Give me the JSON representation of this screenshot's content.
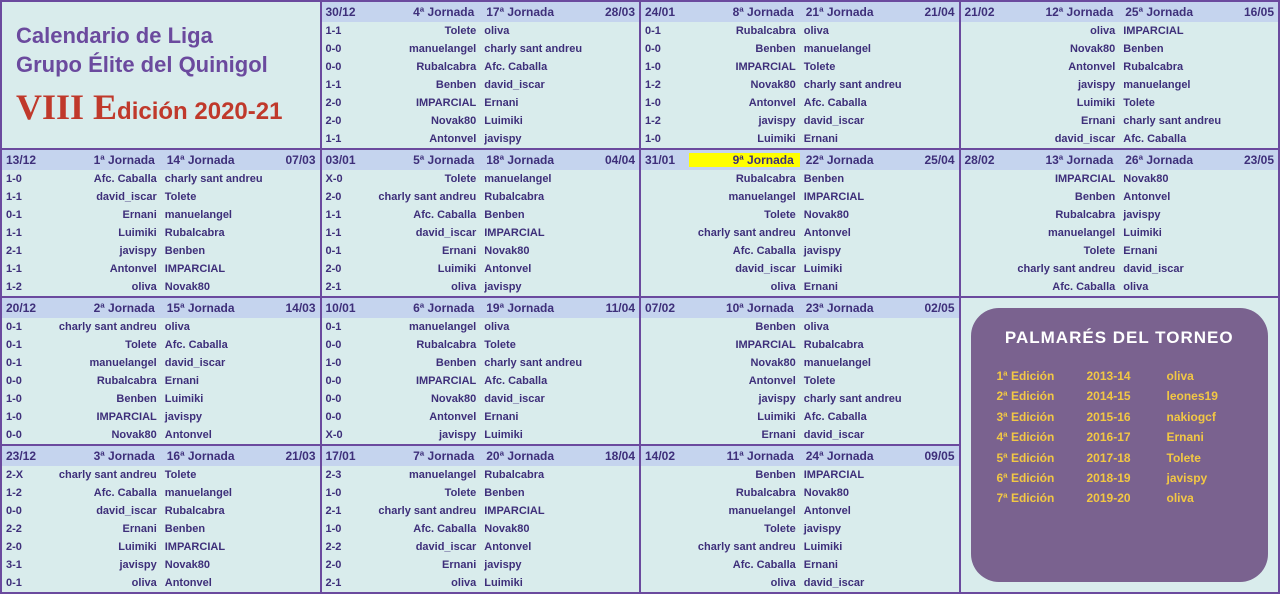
{
  "title": {
    "line1": "Calendario de Liga",
    "line2": "Grupo Élite del Quinigol",
    "edition_roman": "VIII E",
    "edition_rest": "dición 2020-21"
  },
  "colors": {
    "border": "#6b4a9e",
    "cell_bg": "#d9ecec",
    "header_bg": "#c5d4ee",
    "text": "#3e2f7a",
    "title": "#6b4a9e",
    "edition": "#c0392b",
    "palm_bg": "#7a628f",
    "palm_text": "#f2c744",
    "highlight": "#ffff00"
  },
  "cells": [
    {
      "type": "title"
    },
    {
      "type": "jornada",
      "d1": "30/12",
      "j1": "4ª Jornada",
      "j2": "17ª Jornada",
      "d2": "28/03",
      "rows": [
        {
          "s": "1-1",
          "h": "Tolete",
          "a": "oliva"
        },
        {
          "s": "0-0",
          "h": "manuelangel",
          "a": "charly sant andreu"
        },
        {
          "s": "0-0",
          "h": "Rubalcabra",
          "a": "Afc. Caballa"
        },
        {
          "s": "1-1",
          "h": "Benben",
          "a": "david_iscar"
        },
        {
          "s": "2-0",
          "h": "IMPARCIAL",
          "a": "Ernani"
        },
        {
          "s": "2-0",
          "h": "Novak80",
          "a": "Luimiki"
        },
        {
          "s": "1-1",
          "h": "Antonvel",
          "a": "javispy"
        }
      ]
    },
    {
      "type": "jornada",
      "d1": "24/01",
      "j1": "8ª Jornada",
      "j2": "21ª Jornada",
      "d2": "21/04",
      "rows": [
        {
          "s": "0-1",
          "h": "Rubalcabra",
          "a": "oliva"
        },
        {
          "s": "0-0",
          "h": "Benben",
          "a": "manuelangel"
        },
        {
          "s": "1-0",
          "h": "IMPARCIAL",
          "a": "Tolete"
        },
        {
          "s": "1-2",
          "h": "Novak80",
          "a": "charly sant andreu"
        },
        {
          "s": "1-0",
          "h": "Antonvel",
          "a": "Afc. Caballa"
        },
        {
          "s": "1-2",
          "h": "javispy",
          "a": "david_iscar"
        },
        {
          "s": "1-0",
          "h": "Luimiki",
          "a": "Ernani"
        }
      ]
    },
    {
      "type": "jornada",
      "d1": "21/02",
      "j1": "12ª Jornada",
      "j2": "25ª Jornada",
      "d2": "16/05",
      "rows": [
        {
          "s": "",
          "h": "oliva",
          "a": "IMPARCIAL"
        },
        {
          "s": "",
          "h": "Novak80",
          "a": "Benben"
        },
        {
          "s": "",
          "h": "Antonvel",
          "a": "Rubalcabra"
        },
        {
          "s": "",
          "h": "javispy",
          "a": "manuelangel"
        },
        {
          "s": "",
          "h": "Luimiki",
          "a": "Tolete"
        },
        {
          "s": "",
          "h": "Ernani",
          "a": "charly sant andreu"
        },
        {
          "s": "",
          "h": "david_iscar",
          "a": "Afc. Caballa"
        }
      ]
    },
    {
      "type": "jornada",
      "d1": "13/12",
      "j1": "1ª Jornada",
      "j2": "14ª Jornada",
      "d2": "07/03",
      "rows": [
        {
          "s": "1-0",
          "h": "Afc. Caballa",
          "a": "charly sant andreu"
        },
        {
          "s": "1-1",
          "h": "david_iscar",
          "a": "Tolete"
        },
        {
          "s": "0-1",
          "h": "Ernani",
          "a": "manuelangel"
        },
        {
          "s": "1-1",
          "h": "Luimiki",
          "a": "Rubalcabra"
        },
        {
          "s": "2-1",
          "h": "javispy",
          "a": "Benben"
        },
        {
          "s": "1-1",
          "h": "Antonvel",
          "a": "IMPARCIAL"
        },
        {
          "s": "1-2",
          "h": "oliva",
          "a": "Novak80"
        }
      ]
    },
    {
      "type": "jornada",
      "d1": "03/01",
      "j1": "5ª Jornada",
      "j2": "18ª Jornada",
      "d2": "04/04",
      "rows": [
        {
          "s": "X-0",
          "h": "Tolete",
          "a": "manuelangel"
        },
        {
          "s": "2-0",
          "h": "charly sant andreu",
          "a": "Rubalcabra"
        },
        {
          "s": "1-1",
          "h": "Afc. Caballa",
          "a": "Benben"
        },
        {
          "s": "1-1",
          "h": "david_iscar",
          "a": "IMPARCIAL"
        },
        {
          "s": "0-1",
          "h": "Ernani",
          "a": "Novak80"
        },
        {
          "s": "2-0",
          "h": "Luimiki",
          "a": "Antonvel"
        },
        {
          "s": "2-1",
          "h": "oliva",
          "a": "javispy"
        }
      ]
    },
    {
      "type": "jornada",
      "d1": "31/01",
      "j1": "9ª Jornada",
      "j2": "22ª Jornada",
      "d2": "25/04",
      "hl": true,
      "rows": [
        {
          "s": "",
          "h": "Rubalcabra",
          "a": "Benben"
        },
        {
          "s": "",
          "h": "manuelangel",
          "a": "IMPARCIAL"
        },
        {
          "s": "",
          "h": "Tolete",
          "a": "Novak80"
        },
        {
          "s": "",
          "h": "charly sant andreu",
          "a": "Antonvel"
        },
        {
          "s": "",
          "h": "Afc. Caballa",
          "a": "javispy"
        },
        {
          "s": "",
          "h": "david_iscar",
          "a": "Luimiki"
        },
        {
          "s": "",
          "h": "oliva",
          "a": "Ernani"
        }
      ]
    },
    {
      "type": "jornada",
      "d1": "28/02",
      "j1": "13ª Jornada",
      "j2": "26ª Jornada",
      "d2": "23/05",
      "rows": [
        {
          "s": "",
          "h": "IMPARCIAL",
          "a": "Novak80"
        },
        {
          "s": "",
          "h": "Benben",
          "a": "Antonvel"
        },
        {
          "s": "",
          "h": "Rubalcabra",
          "a": "javispy"
        },
        {
          "s": "",
          "h": "manuelangel",
          "a": "Luimiki"
        },
        {
          "s": "",
          "h": "Tolete",
          "a": "Ernani"
        },
        {
          "s": "",
          "h": "charly sant andreu",
          "a": "david_iscar"
        },
        {
          "s": "",
          "h": "Afc. Caballa",
          "a": "oliva"
        }
      ]
    },
    {
      "type": "jornada",
      "d1": "20/12",
      "j1": "2ª Jornada",
      "j2": "15ª Jornada",
      "d2": "14/03",
      "rows": [
        {
          "s": "0-1",
          "h": "charly sant andreu",
          "a": "oliva"
        },
        {
          "s": "0-1",
          "h": "Tolete",
          "a": "Afc. Caballa"
        },
        {
          "s": "0-1",
          "h": "manuelangel",
          "a": "david_iscar"
        },
        {
          "s": "0-0",
          "h": "Rubalcabra",
          "a": "Ernani"
        },
        {
          "s": "1-0",
          "h": "Benben",
          "a": "Luimiki"
        },
        {
          "s": "1-0",
          "h": "IMPARCIAL",
          "a": "javispy"
        },
        {
          "s": "0-0",
          "h": "Novak80",
          "a": "Antonvel"
        }
      ]
    },
    {
      "type": "jornada",
      "d1": "10/01",
      "j1": "6ª Jornada",
      "j2": "19ª Jornada",
      "d2": "11/04",
      "rows": [
        {
          "s": "0-1",
          "h": "manuelangel",
          "a": "oliva"
        },
        {
          "s": "0-0",
          "h": "Rubalcabra",
          "a": "Tolete"
        },
        {
          "s": "1-0",
          "h": "Benben",
          "a": "charly sant andreu"
        },
        {
          "s": "0-0",
          "h": "IMPARCIAL",
          "a": "Afc. Caballa"
        },
        {
          "s": "0-0",
          "h": "Novak80",
          "a": "david_iscar"
        },
        {
          "s": "0-0",
          "h": "Antonvel",
          "a": "Ernani"
        },
        {
          "s": "X-0",
          "h": "javispy",
          "a": "Luimiki"
        }
      ]
    },
    {
      "type": "jornada",
      "d1": "07/02",
      "j1": "10ª Jornada",
      "j2": "23ª Jornada",
      "d2": "02/05",
      "rows": [
        {
          "s": "",
          "h": "Benben",
          "a": "oliva"
        },
        {
          "s": "",
          "h": "IMPARCIAL",
          "a": "Rubalcabra"
        },
        {
          "s": "",
          "h": "Novak80",
          "a": "manuelangel"
        },
        {
          "s": "",
          "h": "Antonvel",
          "a": "Tolete"
        },
        {
          "s": "",
          "h": "javispy",
          "a": "charly sant andreu"
        },
        {
          "s": "",
          "h": "Luimiki",
          "a": "Afc. Caballa"
        },
        {
          "s": "",
          "h": "Ernani",
          "a": "david_iscar"
        }
      ]
    },
    {
      "type": "palmares"
    },
    {
      "type": "jornada",
      "d1": "23/12",
      "j1": "3ª Jornada",
      "j2": "16ª Jornada",
      "d2": "21/03",
      "rows": [
        {
          "s": "2-X",
          "h": "charly sant andreu",
          "a": "Tolete"
        },
        {
          "s": "1-2",
          "h": "Afc. Caballa",
          "a": "manuelangel"
        },
        {
          "s": "0-0",
          "h": "david_iscar",
          "a": "Rubalcabra"
        },
        {
          "s": "2-2",
          "h": "Ernani",
          "a": "Benben"
        },
        {
          "s": "2-0",
          "h": "Luimiki",
          "a": "IMPARCIAL"
        },
        {
          "s": "3-1",
          "h": "javispy",
          "a": "Novak80"
        },
        {
          "s": "0-1",
          "h": "oliva",
          "a": "Antonvel"
        }
      ]
    },
    {
      "type": "jornada",
      "d1": "17/01",
      "j1": "7ª Jornada",
      "j2": "20ª Jornada",
      "d2": "18/04",
      "rows": [
        {
          "s": "2-3",
          "h": "manuelangel",
          "a": "Rubalcabra"
        },
        {
          "s": "1-0",
          "h": "Tolete",
          "a": "Benben"
        },
        {
          "s": "2-1",
          "h": "charly sant andreu",
          "a": "IMPARCIAL"
        },
        {
          "s": "1-0",
          "h": "Afc. Caballa",
          "a": "Novak80"
        },
        {
          "s": "2-2",
          "h": "david_iscar",
          "a": "Antonvel"
        },
        {
          "s": "2-0",
          "h": "Ernani",
          "a": "javispy"
        },
        {
          "s": "2-1",
          "h": "oliva",
          "a": "Luimiki"
        }
      ]
    },
    {
      "type": "jornada",
      "d1": "14/02",
      "j1": "11ª Jornada",
      "j2": "24ª Jornada",
      "d2": "09/05",
      "rows": [
        {
          "s": "",
          "h": "Benben",
          "a": "IMPARCIAL"
        },
        {
          "s": "",
          "h": "Rubalcabra",
          "a": "Novak80"
        },
        {
          "s": "",
          "h": "manuelangel",
          "a": "Antonvel"
        },
        {
          "s": "",
          "h": "Tolete",
          "a": "javispy"
        },
        {
          "s": "",
          "h": "charly sant andreu",
          "a": "Luimiki"
        },
        {
          "s": "",
          "h": "Afc. Caballa",
          "a": "Ernani"
        },
        {
          "s": "",
          "h": "oliva",
          "a": "david_iscar"
        }
      ]
    },
    {
      "type": "palmares-cont"
    }
  ],
  "palmares": {
    "title": "PALMARÉS DEL TORNEO",
    "rows": [
      {
        "e": "1ª Edición",
        "y": "2013-14",
        "w": "oliva"
      },
      {
        "e": "2ª Edición",
        "y": "2014-15",
        "w": "leones19"
      },
      {
        "e": "3ª Edición",
        "y": "2015-16",
        "w": "nakiogcf"
      },
      {
        "e": "4ª Edición",
        "y": "2016-17",
        "w": "Ernani"
      },
      {
        "e": "5ª Edición",
        "y": "2017-18",
        "w": "Tolete"
      },
      {
        "e": "6ª Edición",
        "y": "2018-19",
        "w": "javispy"
      },
      {
        "e": "7ª Edición",
        "y": "2019-20",
        "w": "oliva"
      }
    ]
  }
}
